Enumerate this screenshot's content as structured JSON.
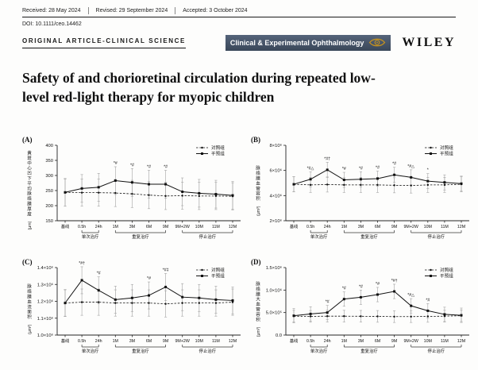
{
  "header": {
    "received": "Received: 28 May 2024",
    "revised": "Revised: 29 September 2024",
    "accepted": "Accepted: 3 October 2024",
    "doi": "DOI: 10.1111/ceo.14462",
    "article_type": "ORIGINAL ARTICLE-CLINICAL SCIENCE",
    "journal": "Clinical & Experimental Ophthalmology",
    "publisher": "WILEY",
    "banner_bg": "#44536a",
    "logo_color": "#c9941c"
  },
  "title": "Safety of and chorioretinal circulation during repeated low-level red-light therapy for myopic children",
  "chart_data": [
    {
      "type": "line",
      "panel": "(A)",
      "categories": [
        "基线",
        "0.5h",
        "24h",
        "1M",
        "3M",
        "6M",
        "9M",
        "9M+2W",
        "10M",
        "11M",
        "12M"
      ],
      "ylabel_cn": "黄斑中心凹下平均脉络膜厚度",
      "ylabel_unit": "(μm)",
      "ylim": [
        150,
        400
      ],
      "yticks": [
        150,
        200,
        250,
        300,
        350,
        400
      ],
      "ytick_labels": [
        "150",
        "200",
        "250",
        "300",
        "350",
        "400"
      ],
      "series": [
        {
          "name": "对照组",
          "style": "dashed",
          "marker": "circle",
          "err": 45,
          "values": [
            243,
            243,
            243,
            242,
            239,
            235,
            232,
            233,
            232,
            232,
            231
          ]
        },
        {
          "name": "干预组",
          "style": "solid",
          "marker": "square",
          "err": 46,
          "values": [
            244,
            257,
            261,
            283,
            277,
            271,
            271,
            246,
            241,
            238,
            234
          ]
        }
      ],
      "sig": [
        "",
        "",
        "",
        "*#",
        "*#",
        "*#",
        "*#",
        "",
        "",
        "",
        ""
      ],
      "phases": [
        {
          "from": 1,
          "to": 2,
          "label": "单次治疗"
        },
        {
          "from": 3,
          "to": 6,
          "label": "重复治疗"
        },
        {
          "from": 7,
          "to": 10,
          "label": "停止治疗"
        }
      ],
      "legend_position": "top-right",
      "grid": false
    },
    {
      "type": "line",
      "panel": "(B)",
      "categories": [
        "基线",
        "0.5h",
        "24h",
        "1M",
        "3M",
        "6M",
        "9M",
        "9M+2W",
        "10M",
        "11M",
        "12M"
      ],
      "ylabel_cn": "脉络膜血管容积",
      "ylabel_unit": "(μm³)",
      "ylim": [
        2000000,
        8000000
      ],
      "yticks": [
        2000000,
        4000000,
        6000000,
        8000000
      ],
      "ytick_labels": [
        "2×10⁶",
        "4×10⁶",
        "6×10⁶",
        "8×10⁶"
      ],
      "series": [
        {
          "name": "对照组",
          "style": "dashed",
          "marker": "circle",
          "err": 600000,
          "values": [
            4900000,
            4850000,
            4880000,
            4850000,
            4850000,
            4850000,
            4820000,
            4800000,
            4850000,
            4850000,
            4900000
          ]
        },
        {
          "name": "干预组",
          "style": "solid",
          "marker": "square",
          "err": 600000,
          "values": [
            4900000,
            5300000,
            6050000,
            5250000,
            5300000,
            5350000,
            5650000,
            5450000,
            5150000,
            5050000,
            4950000
          ]
        }
      ],
      "sig": [
        "",
        "*#△",
        "*#†",
        "*#",
        "*#",
        "*#",
        "*#",
        "*#△",
        "*",
        "",
        ""
      ],
      "phases": [
        {
          "from": 1,
          "to": 2,
          "label": "单次治疗"
        },
        {
          "from": 3,
          "to": 6,
          "label": "重复治疗"
        },
        {
          "from": 7,
          "to": 10,
          "label": "停止治疗"
        }
      ],
      "legend_position": "top-right",
      "grid": false
    },
    {
      "type": "line",
      "panel": "(C)",
      "categories": [
        "基线",
        "0.5h",
        "24h",
        "1M",
        "3M",
        "6M",
        "9M",
        "9M+2W",
        "10M",
        "11M",
        "12M"
      ],
      "ylabel_cn": "脉络膜血流面积",
      "ylabel_unit": "(μm²)",
      "ylim": [
        1000000,
        1400000
      ],
      "yticks": [
        1000000,
        1100000,
        1200000,
        1300000,
        1400000
      ],
      "ytick_labels": [
        "1.0×10⁶",
        "1.1×10⁶",
        "1.2×10⁶",
        "1.3×10⁶",
        "1.4×10⁶"
      ],
      "series": [
        {
          "name": "对照组",
          "style": "dashed",
          "marker": "circle",
          "err": 78000,
          "values": [
            1190000,
            1195000,
            1195000,
            1190000,
            1190000,
            1190000,
            1185000,
            1190000,
            1190000,
            1190000,
            1195000
          ]
        },
        {
          "name": "干预组",
          "style": "solid",
          "marker": "square",
          "err": 80000,
          "values": [
            1190000,
            1325000,
            1265000,
            1210000,
            1220000,
            1235000,
            1285000,
            1225000,
            1220000,
            1210000,
            1205000
          ]
        }
      ],
      "sig": [
        "",
        "*#†",
        "*#",
        "",
        "",
        "*#",
        "*#‡",
        "",
        "",
        "",
        ""
      ],
      "phases": [
        {
          "from": 1,
          "to": 2,
          "label": "单次治疗"
        },
        {
          "from": 3,
          "to": 6,
          "label": "重复治疗"
        },
        {
          "from": 7,
          "to": 10,
          "label": "停止治疗"
        }
      ],
      "legend_position": "top-right",
      "grid": false
    },
    {
      "type": "line",
      "panel": "(D)",
      "categories": [
        "基线",
        "0.5h",
        "24h",
        "1M",
        "3M",
        "6M",
        "9M",
        "9M+2W",
        "10M",
        "11M",
        "12M"
      ],
      "ylabel_cn": "脉络膜大血管容积",
      "ylabel_unit": "(μm³)",
      "ylim": [
        0,
        1500000
      ],
      "yticks": [
        0,
        500000,
        1000000,
        1500000
      ],
      "ytick_labels": [
        "0.0",
        "5.0×10⁵",
        "1.0×10⁶",
        "1.5×10⁶"
      ],
      "series": [
        {
          "name": "对照组",
          "style": "dashed",
          "marker": "circle",
          "err": 130000,
          "values": [
            420000,
            415000,
            420000,
            420000,
            418000,
            415000,
            410000,
            410000,
            415000,
            420000,
            430000
          ]
        },
        {
          "name": "干预组",
          "style": "solid",
          "marker": "square",
          "err": 160000,
          "values": [
            430000,
            470000,
            500000,
            800000,
            840000,
            900000,
            970000,
            650000,
            540000,
            460000,
            440000
          ]
        }
      ],
      "sig": [
        "",
        "",
        "*#",
        "*#",
        "*#",
        "*#",
        "*#†",
        "*#△",
        "*#",
        "",
        ""
      ],
      "phases": [
        {
          "from": 1,
          "to": 2,
          "label": "单次治疗"
        },
        {
          "from": 3,
          "to": 6,
          "label": "重复治疗"
        },
        {
          "from": 7,
          "to": 10,
          "label": "停止治疗"
        }
      ],
      "legend_position": "top-right",
      "grid": false
    }
  ]
}
